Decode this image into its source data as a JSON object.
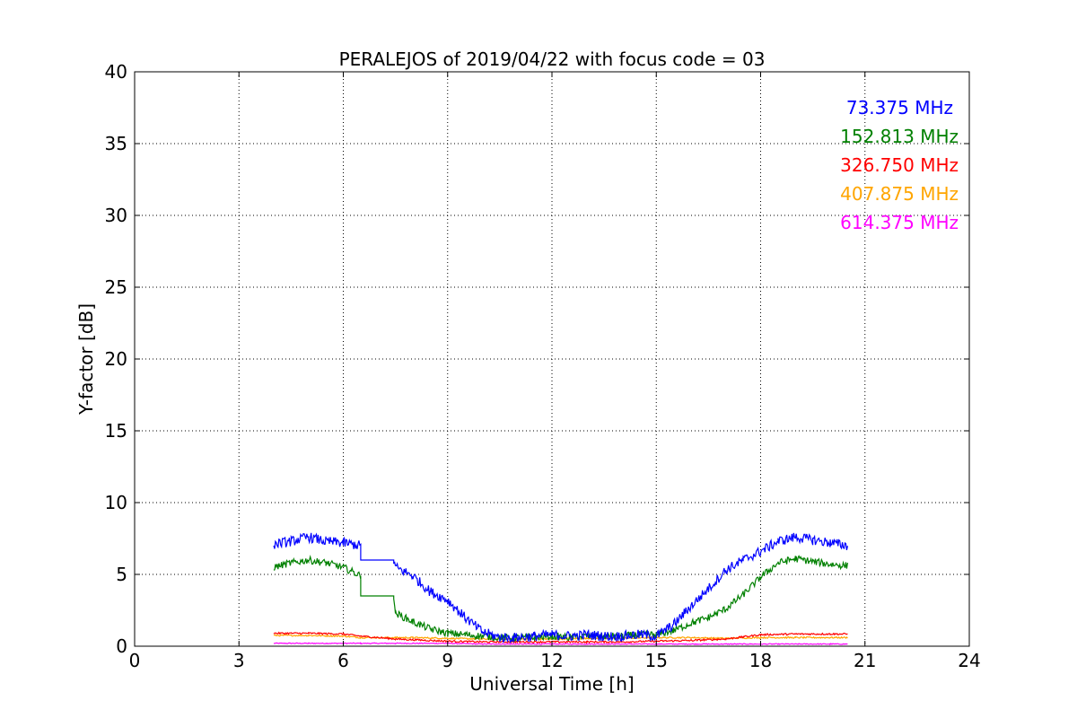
{
  "chart_data": {
    "type": "line",
    "title": "PERALEJOS of 2019/04/22 with focus code = 03",
    "xlabel": "Universal Time [h]",
    "ylabel": "Y-factor [dB]",
    "xlim": [
      0,
      24
    ],
    "ylim": [
      0,
      40
    ],
    "xticks": [
      0,
      3,
      6,
      9,
      12,
      15,
      18,
      21,
      24
    ],
    "yticks": [
      0,
      5,
      10,
      15,
      20,
      25,
      30,
      35,
      40
    ],
    "grid": true,
    "legend_placement": "top-right",
    "series": [
      {
        "name": "73.375 MHz",
        "color": "#0000ff",
        "x": [
          4.0,
          4.5,
          5.0,
          5.5,
          6.0,
          6.5,
          6.5,
          7.45,
          7.5,
          8.0,
          8.5,
          9.0,
          9.5,
          10.0,
          10.5,
          11.0,
          11.5,
          12.0,
          12.5,
          13.0,
          13.5,
          14.0,
          14.5,
          15.0,
          15.5,
          16.0,
          16.5,
          17.0,
          17.5,
          18.0,
          18.5,
          19.0,
          19.5,
          20.0,
          20.5
        ],
        "y": [
          7.1,
          7.3,
          7.6,
          7.3,
          7.2,
          7.0,
          6.0,
          6.0,
          5.5,
          4.9,
          3.8,
          3.2,
          2.0,
          1.0,
          0.6,
          0.6,
          0.7,
          0.8,
          0.7,
          0.8,
          0.7,
          0.7,
          0.8,
          0.7,
          1.5,
          2.8,
          4.0,
          5.3,
          6.0,
          6.6,
          7.3,
          7.6,
          7.4,
          7.2,
          7.0
        ]
      },
      {
        "name": "152.813 MHz",
        "color": "#008000",
        "x": [
          4.0,
          4.5,
          5.0,
          5.5,
          6.0,
          6.5,
          6.5,
          7.45,
          7.5,
          8.0,
          8.5,
          9.0,
          9.5,
          10.0,
          10.5,
          11.0,
          11.5,
          12.0,
          12.5,
          13.0,
          13.5,
          14.0,
          14.5,
          15.0,
          15.5,
          16.0,
          16.5,
          17.0,
          17.5,
          18.0,
          18.5,
          19.0,
          19.5,
          20.0,
          20.5
        ],
        "y": [
          5.5,
          5.8,
          6.0,
          5.8,
          5.5,
          4.9,
          3.5,
          3.5,
          2.3,
          1.7,
          1.2,
          0.9,
          0.8,
          0.7,
          0.6,
          0.6,
          0.6,
          0.7,
          0.6,
          0.7,
          0.7,
          0.7,
          0.8,
          0.8,
          1.1,
          1.6,
          2.0,
          2.6,
          3.6,
          4.8,
          5.8,
          6.1,
          5.9,
          5.7,
          5.6
        ]
      },
      {
        "name": "326.750 MHz",
        "color": "#ff0000",
        "x": [
          4.0,
          5.0,
          6.0,
          6.5,
          7.5,
          8.0,
          9.0,
          10.0,
          11.0,
          12.0,
          13.0,
          14.0,
          15.0,
          16.0,
          17.0,
          17.5,
          18.0,
          19.0,
          20.0,
          20.5
        ],
        "y": [
          0.9,
          0.9,
          0.85,
          0.7,
          0.5,
          0.45,
          0.35,
          0.3,
          0.3,
          0.3,
          0.3,
          0.3,
          0.35,
          0.4,
          0.5,
          0.65,
          0.8,
          0.85,
          0.85,
          0.85
        ]
      },
      {
        "name": "407.875 MHz",
        "color": "#ffa500",
        "x": [
          4.0,
          5.0,
          6.0,
          6.5,
          7.5,
          8.0,
          9.0,
          10.0,
          11.0,
          12.0,
          13.0,
          14.0,
          15.0,
          16.0,
          17.0,
          18.0,
          19.0,
          20.0,
          20.5
        ],
        "y": [
          0.75,
          0.75,
          0.7,
          0.6,
          0.6,
          0.6,
          0.55,
          0.5,
          0.5,
          0.5,
          0.55,
          0.55,
          0.6,
          0.6,
          0.55,
          0.6,
          0.6,
          0.6,
          0.6
        ]
      },
      {
        "name": "614.375 MHz",
        "color": "#ff00ff",
        "x": [
          4.0,
          5.0,
          6.0,
          6.5,
          7.5,
          8.0,
          9.0,
          10.0,
          11.0,
          12.0,
          13.0,
          14.0,
          15.0,
          16.0,
          17.0,
          18.0,
          19.0,
          20.0,
          20.5
        ],
        "y": [
          0.2,
          0.2,
          0.2,
          0.2,
          0.2,
          0.2,
          0.2,
          0.15,
          0.15,
          0.15,
          0.15,
          0.15,
          0.15,
          0.15,
          0.15,
          0.15,
          0.15,
          0.15,
          0.15
        ]
      }
    ]
  }
}
